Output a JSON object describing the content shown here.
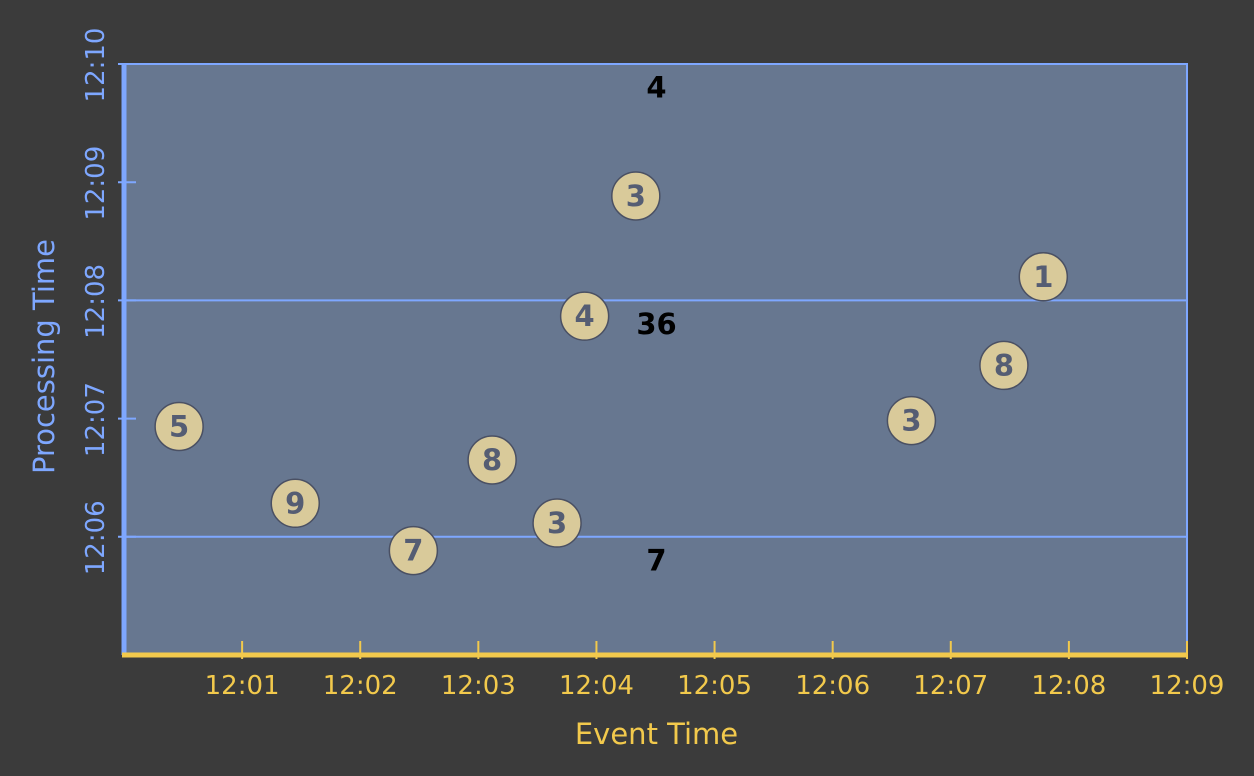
{
  "chart_data": {
    "type": "scatter",
    "title": "",
    "xlabel": "Event Time",
    "ylabel": "Processing Time",
    "x_ticks": [
      "12:01",
      "12:02",
      "12:03",
      "12:04",
      "12:05",
      "12:06",
      "12:07",
      "12:08",
      "12:09"
    ],
    "y_ticks": [
      "12:06",
      "12:07",
      "12:08",
      "12:09",
      "12:10"
    ],
    "xlim": [
      "12:00",
      "12:09"
    ],
    "ylim": [
      "12:05",
      "12:10"
    ],
    "grid": false,
    "points": [
      {
        "event_time": "12:00:28",
        "processing_time": "12:06:56",
        "value": "5"
      },
      {
        "event_time": "12:01:27",
        "processing_time": "12:06:17",
        "value": "9"
      },
      {
        "event_time": "12:02:27",
        "processing_time": "12:05:53",
        "value": "7"
      },
      {
        "event_time": "12:03:07",
        "processing_time": "12:06:39",
        "value": "8"
      },
      {
        "event_time": "12:03:40",
        "processing_time": "12:06:07",
        "value": "3"
      },
      {
        "event_time": "12:03:54",
        "processing_time": "12:07:52",
        "value": "4"
      },
      {
        "event_time": "12:04:20",
        "processing_time": "12:08:53",
        "value": "3"
      },
      {
        "event_time": "12:06:40",
        "processing_time": "12:06:59",
        "value": "3"
      },
      {
        "event_time": "12:07:27",
        "processing_time": "12:07:27",
        "value": "8"
      },
      {
        "event_time": "12:07:47",
        "processing_time": "12:08:12",
        "value": "1"
      }
    ],
    "window_boundaries": [
      "12:06",
      "12:08"
    ],
    "results": [
      {
        "processing_time": "12:05:48",
        "event_time": "12:04:30",
        "value": "7"
      },
      {
        "processing_time": "12:07:48",
        "event_time": "12:04:30",
        "value": "36"
      },
      {
        "processing_time": "12:09:48",
        "event_time": "12:04:30",
        "value": "4"
      }
    ],
    "colors": {
      "background": "#3b3b3b",
      "plot_fill": "#677790",
      "axis_blue": "#7ea7ff",
      "axis_yellow": "#f2c94c",
      "point_fill": "#d9ca9a",
      "point_text": "#555d73",
      "result_text": "#000000"
    }
  }
}
